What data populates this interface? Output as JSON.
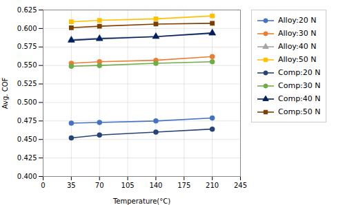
{
  "chart_data": {
    "type": "line",
    "x": [
      35,
      70,
      140,
      210
    ],
    "series": [
      {
        "name": "Alloy:20 N",
        "values": [
          0.472,
          0.473,
          0.475,
          0.479
        ],
        "color": "#4472c4",
        "marker": "circle"
      },
      {
        "name": "Alloy:30 N",
        "values": [
          0.553,
          0.555,
          0.557,
          0.562
        ],
        "color": "#ed7d31",
        "marker": "circle"
      },
      {
        "name": "Alloy:40 N",
        "values": [
          0.585,
          0.587,
          0.589,
          0.593
        ],
        "color": "#a5a5a5",
        "marker": "triangle"
      },
      {
        "name": "Alloy:50 N",
        "values": [
          0.609,
          0.611,
          0.613,
          0.617
        ],
        "color": "#ffc000",
        "marker": "square"
      },
      {
        "name": "Comp:20 N",
        "values": [
          0.452,
          0.456,
          0.46,
          0.464
        ],
        "color": "#264478",
        "marker": "circle"
      },
      {
        "name": "Comp:30 N",
        "values": [
          0.549,
          0.55,
          0.553,
          0.555
        ],
        "color": "#70ad47",
        "marker": "circle"
      },
      {
        "name": "Comp:40 N",
        "values": [
          0.584,
          0.586,
          0.589,
          0.594
        ],
        "color": "#002060",
        "marker": "triangle"
      },
      {
        "name": "Comp:50 N",
        "values": [
          0.601,
          0.603,
          0.606,
          0.607
        ],
        "color": "#7b3f00",
        "marker": "square"
      }
    ],
    "xlabel": "Temperature(°C)",
    "ylabel": "Avg. COF",
    "xlim": [
      0,
      245
    ],
    "ylim": [
      0.4,
      0.625
    ],
    "xticks": [
      0,
      35,
      70,
      105,
      140,
      175,
      210,
      245
    ],
    "yticks": [
      {
        "value": 0.4,
        "label": "0.400"
      },
      0.425,
      {
        "value": 0.45,
        "label": "0.450"
      },
      0.475,
      {
        "value": 0.5,
        "label": "0.500"
      },
      0.525,
      {
        "value": 0.55,
        "label": "0.550"
      },
      0.575,
      {
        "value": 0.6,
        "label": "0.600"
      },
      0.625
    ],
    "grid": true,
    "legend": "right"
  }
}
